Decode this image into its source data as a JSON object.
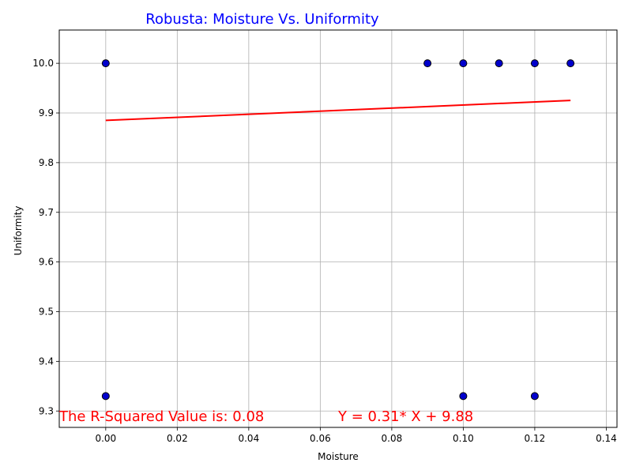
{
  "chart_data": {
    "type": "scatter",
    "title": "Robusta: Moisture Vs. Uniformity",
    "xlabel": "Moisture",
    "ylabel": "Uniformity",
    "xlim": [
      -0.013,
      0.143
    ],
    "ylim": [
      9.267,
      10.067
    ],
    "xticks": [
      0.0,
      0.02,
      0.04,
      0.06,
      0.08,
      0.1,
      0.12,
      0.14
    ],
    "xtick_labels": [
      "0.00",
      "0.02",
      "0.04",
      "0.06",
      "0.08",
      "0.10",
      "0.12",
      "0.14"
    ],
    "yticks": [
      9.3,
      9.4,
      9.5,
      9.6,
      9.7,
      9.8,
      9.9,
      10.0
    ],
    "ytick_labels": [
      "9.3",
      "9.4",
      "9.5",
      "9.6",
      "9.7",
      "9.8",
      "9.9",
      "10.0"
    ],
    "grid": true,
    "points": [
      {
        "x": 0.0,
        "y": 10.0
      },
      {
        "x": 0.0,
        "y": 9.33
      },
      {
        "x": 0.09,
        "y": 10.0
      },
      {
        "x": 0.1,
        "y": 10.0
      },
      {
        "x": 0.1,
        "y": 9.33
      },
      {
        "x": 0.11,
        "y": 10.0
      },
      {
        "x": 0.12,
        "y": 10.0
      },
      {
        "x": 0.12,
        "y": 9.33
      },
      {
        "x": 0.13,
        "y": 10.0
      }
    ],
    "regression": {
      "slope": 0.31,
      "intercept": 9.885,
      "x_range": [
        0.0,
        0.13
      ]
    },
    "annotations": {
      "r_squared_text": "The R-Squared Value is: 0.08",
      "equation_text": "Y = 0.31* X + 9.88"
    },
    "colors": {
      "points_fill": "#0000cd",
      "points_edge": "#000000",
      "regression_line": "#ff0000",
      "title": "#0000ff",
      "annotation": "#ff0000",
      "grid": "#b0b0b0"
    }
  }
}
